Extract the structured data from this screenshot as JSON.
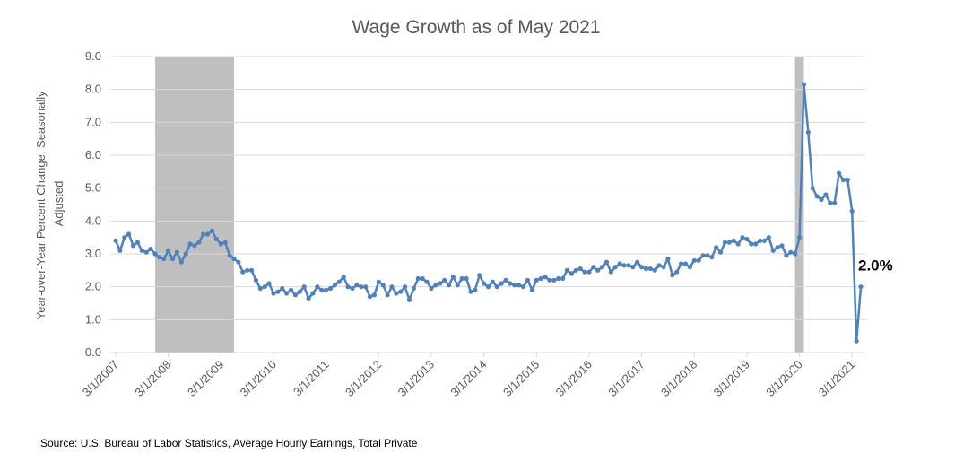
{
  "chart_data": {
    "type": "line",
    "title": "Wage Growth as of May 2021",
    "ylabel": "Year-over-Year Percent Change, Seasonally Adjusted",
    "ylabel_lines": [
      "Year-over-Year Percent Change, Seasonally",
      "Adjusted"
    ],
    "xlabel": "",
    "ylim": [
      0,
      9
    ],
    "yticks": [
      "0.0",
      "1.0",
      "2.0",
      "3.0",
      "4.0",
      "5.0",
      "6.0",
      "7.0",
      "8.0",
      "9.0"
    ],
    "xticks": [
      "3/1/2007",
      "3/1/2008",
      "3/1/2009",
      "3/1/2010",
      "3/1/2011",
      "3/1/2012",
      "3/1/2013",
      "3/1/2014",
      "3/1/2015",
      "3/1/2016",
      "3/1/2017",
      "3/1/2018",
      "3/1/2019",
      "3/1/2020",
      "3/1/2021"
    ],
    "grid": true,
    "legend": "none",
    "series_color": "#4f81bd",
    "shade_color": "#bfbfbf",
    "recessions": [
      [
        "2007-12",
        "2009-06"
      ],
      [
        "2020-02",
        "2020-04"
      ]
    ],
    "start_month": "2007-03",
    "series": [
      {
        "values": [
          3.4,
          3.1,
          3.5,
          3.6,
          3.25,
          3.35,
          3.1,
          3.05,
          3.15,
          3.0,
          2.9,
          2.85,
          3.1,
          2.85,
          3.05,
          2.75,
          3.0,
          3.3,
          3.25,
          3.35,
          3.6,
          3.6,
          3.7,
          3.45,
          3.3,
          3.35,
          2.95,
          2.85,
          2.75,
          2.45,
          2.5,
          2.5,
          2.2,
          1.95,
          2.0,
          2.1,
          1.8,
          1.85,
          1.95,
          1.8,
          1.9,
          1.75,
          1.85,
          2.0,
          1.65,
          1.8,
          2.0,
          1.9,
          1.9,
          1.95,
          2.05,
          2.15,
          2.3,
          2.0,
          1.95,
          2.05,
          2.0,
          2.0,
          1.7,
          1.75,
          2.15,
          2.05,
          1.75,
          2.0,
          1.8,
          1.85,
          2.0,
          1.6,
          1.95,
          2.25,
          2.25,
          2.15,
          1.95,
          2.05,
          2.1,
          2.2,
          2.05,
          2.3,
          2.05,
          2.25,
          2.25,
          1.85,
          1.9,
          2.35,
          2.1,
          2.0,
          2.15,
          2.0,
          2.1,
          2.2,
          2.1,
          2.05,
          2.05,
          2.0,
          2.2,
          1.9,
          2.2,
          2.25,
          2.3,
          2.2,
          2.2,
          2.25,
          2.25,
          2.5,
          2.4,
          2.5,
          2.55,
          2.45,
          2.45,
          2.6,
          2.5,
          2.6,
          2.75,
          2.45,
          2.6,
          2.7,
          2.65,
          2.65,
          2.6,
          2.75,
          2.6,
          2.55,
          2.55,
          2.5,
          2.65,
          2.6,
          2.85,
          2.35,
          2.45,
          2.7,
          2.7,
          2.6,
          2.8,
          2.8,
          2.95,
          2.95,
          2.9,
          3.2,
          3.05,
          3.35,
          3.35,
          3.4,
          3.3,
          3.5,
          3.45,
          3.3,
          3.3,
          3.4,
          3.4,
          3.5,
          3.1,
          3.2,
          3.25,
          2.95,
          3.05,
          3.0,
          3.5,
          8.15,
          6.7,
          5.0,
          4.75,
          4.65,
          4.8,
          4.55,
          4.55,
          5.45,
          5.25,
          5.25,
          4.3,
          0.35,
          2.0
        ]
      }
    ],
    "annotations": [
      {
        "text": "2.0%",
        "month": "2021-05",
        "value": 2.0
      }
    ]
  },
  "source": "Source:  U.S. Bureau of Labor Statistics, Average Hourly Earnings, Total Private"
}
